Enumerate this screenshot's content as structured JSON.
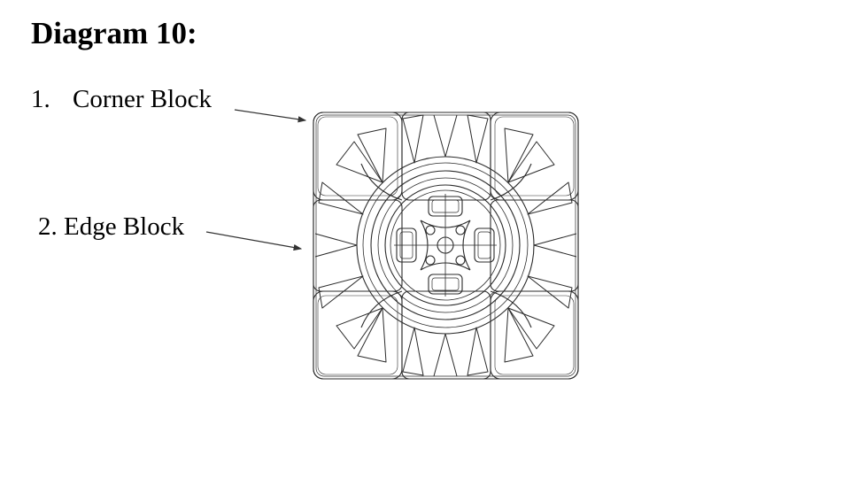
{
  "slide": {
    "title": "Diagram 10:",
    "labels": [
      {
        "number": "1.",
        "text": "Corner Block"
      },
      {
        "number": "2.",
        "text": "Edge Block"
      }
    ]
  },
  "colors": {
    "line": "#2b2b2b",
    "background": "#ffffff"
  },
  "figure": {
    "subject": "cube-top-view-line-drawing"
  }
}
